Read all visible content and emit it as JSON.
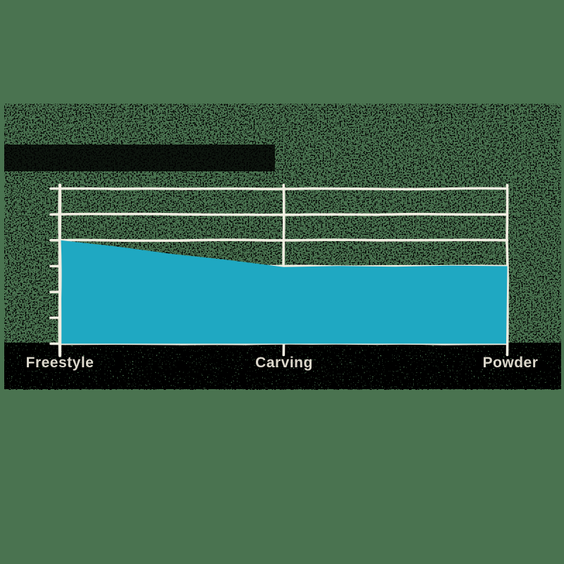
{
  "page": {
    "background_color": "#4A7350"
  },
  "figure": {
    "backdrop_color": "#000000",
    "style_note": "hand-drawn sketch chart on transparent figure box rendered as dark dithered speckle"
  },
  "chart_data": {
    "type": "area",
    "style": "xkcd-sketch",
    "categories": [
      "Freestyle",
      "Carving",
      "Powder"
    ],
    "values": [
      4,
      3,
      3
    ],
    "ylim": [
      0,
      6
    ],
    "y_tick_step": 1,
    "y_tick_count": 7,
    "y_tick_labels_visible": false,
    "x_tick_labels_visible": true,
    "grid": true,
    "legend": "none",
    "title": "",
    "xlabel": "",
    "ylabel": "",
    "area_color": "#1FA8C2",
    "line_color": "#F0EDE1",
    "label_color": "#DBD7CB"
  }
}
